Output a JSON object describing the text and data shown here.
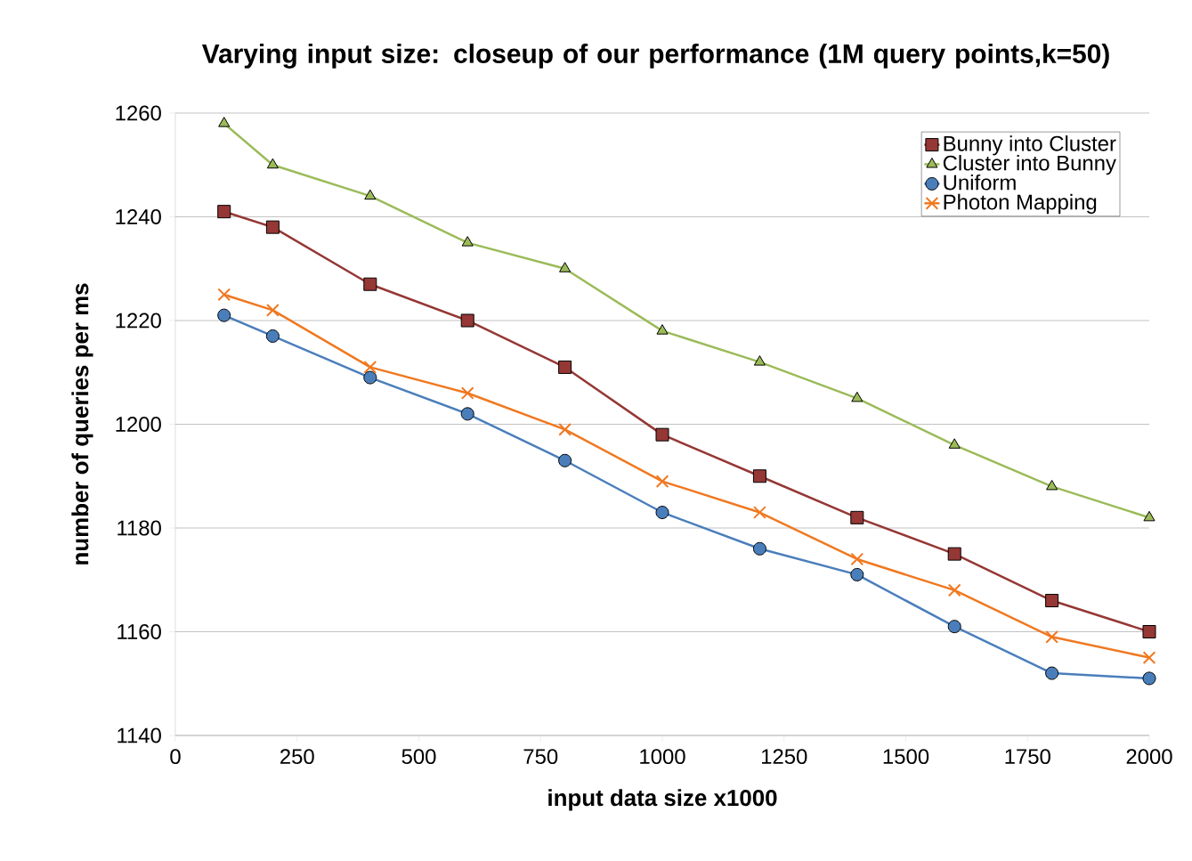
{
  "chart_data": {
    "type": "line",
    "title": "Varying input size: closeup of our performance (1M query points,k=50)",
    "xlabel": "input data size x1000",
    "ylabel": "number of queries per ms",
    "x": [
      100,
      200,
      400,
      600,
      800,
      1000,
      1200,
      1400,
      1600,
      1800,
      2000
    ],
    "series": [
      {
        "name": "Bunny into Cluster",
        "color": "#953735",
        "marker": "square",
        "values": [
          1241,
          1238,
          1227,
          1220,
          1211,
          1198,
          1190,
          1182,
          1175,
          1166,
          1160
        ]
      },
      {
        "name": "Cluster into Bunny",
        "color": "#9bbb59",
        "marker": "triangle",
        "values": [
          1258,
          1250,
          1244,
          1235,
          1230,
          1218,
          1212,
          1205,
          1196,
          1188,
          1182
        ]
      },
      {
        "name": "Uniform",
        "color": "#4a7ebb",
        "marker": "circle",
        "values": [
          1221,
          1217,
          1209,
          1202,
          1193,
          1183,
          1176,
          1171,
          1161,
          1152,
          1151
        ]
      },
      {
        "name": "Photon Mapping",
        "color": "#f07820",
        "marker": "cross",
        "values": [
          1225,
          1222,
          1211,
          1206,
          1199,
          1189,
          1183,
          1174,
          1168,
          1159,
          1155
        ]
      }
    ],
    "xlim": [
      0,
      2000
    ],
    "xticks": [
      0,
      250,
      500,
      750,
      1000,
      1250,
      1500,
      1750,
      2000
    ],
    "ylim": [
      1140,
      1260
    ],
    "yticks": [
      1140,
      1160,
      1180,
      1200,
      1220,
      1240,
      1260
    ],
    "grid": "y",
    "legend": "top right",
    "line_style": "solid"
  }
}
